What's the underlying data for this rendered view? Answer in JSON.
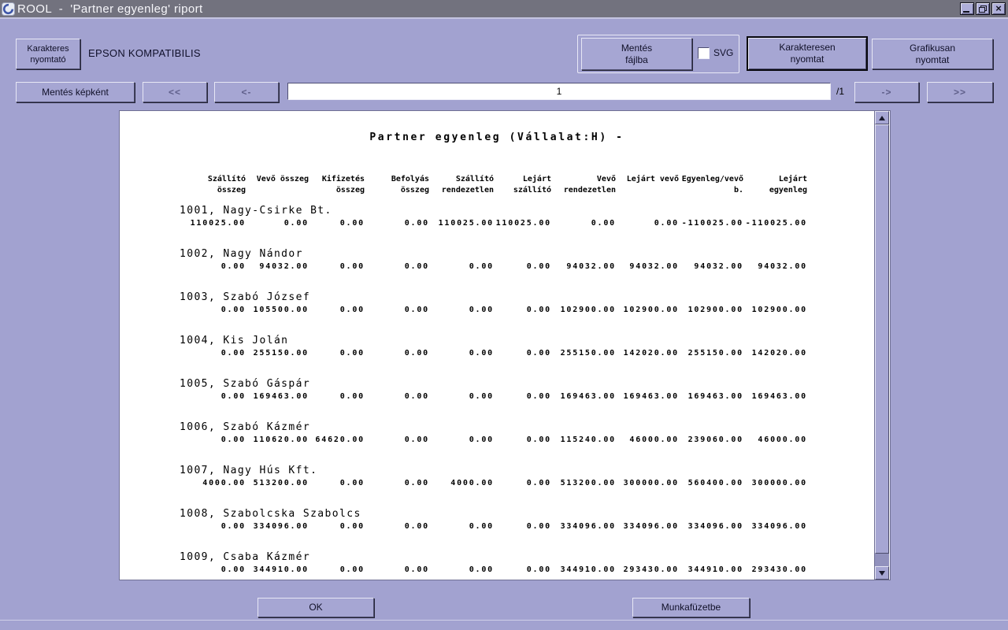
{
  "window": {
    "title": "ROOL  -  'Partner egyenleg' riport"
  },
  "toolbar": {
    "char_printer": {
      "l1": "Karakteres",
      "l2": "nyomtató"
    },
    "printer_name": "EPSON KOMPATIBILIS",
    "save_file": {
      "l1": "Mentés",
      "l2": "fájlba"
    },
    "svg_label": "SVG",
    "svg_checked": false,
    "char_print": {
      "l1": "Karakteresen",
      "l2": "nyomtat"
    },
    "graphic_print": {
      "l1": "Grafikusan",
      "l2": "nyomtat"
    },
    "save_image": "Mentés képként",
    "nav_first": "<<",
    "nav_prev": "<-",
    "nav_next": "->",
    "nav_last": ">>",
    "page_value": "1",
    "page_total": "/1"
  },
  "report": {
    "title": "Partner egyenleg (Vállalat:H) -",
    "columns": [
      [
        "Szállító",
        "összeg"
      ],
      [
        "Vevő összeg",
        ""
      ],
      [
        "Kifizetés",
        "összeg"
      ],
      [
        "Befolyás",
        "összeg"
      ],
      [
        "Szállító",
        "rendezetlen"
      ],
      [
        "Lejárt",
        "szállító"
      ],
      [
        "Vevő",
        "rendezetlen"
      ],
      [
        "Lejárt vevő",
        ""
      ],
      [
        "Egyenleg/vevő",
        "b."
      ],
      [
        "Lejárt",
        "egyenleg"
      ]
    ],
    "rows": [
      {
        "name": "1001, Nagy-Csirke Bt.",
        "values": [
          "110025.00",
          "0.00",
          "0.00",
          "0.00",
          "110025.00",
          "110025.00",
          "0.00",
          "0.00",
          "-110025.00",
          "-110025.00"
        ]
      },
      {
        "name": "1002, Nagy Nándor",
        "values": [
          "0.00",
          "94032.00",
          "0.00",
          "0.00",
          "0.00",
          "0.00",
          "94032.00",
          "94032.00",
          "94032.00",
          "94032.00"
        ]
      },
      {
        "name": "1003, Szabó József",
        "values": [
          "0.00",
          "105500.00",
          "0.00",
          "0.00",
          "0.00",
          "0.00",
          "102900.00",
          "102900.00",
          "102900.00",
          "102900.00"
        ]
      },
      {
        "name": "1004, Kis Jolán",
        "values": [
          "0.00",
          "255150.00",
          "0.00",
          "0.00",
          "0.00",
          "0.00",
          "255150.00",
          "142020.00",
          "255150.00",
          "142020.00"
        ]
      },
      {
        "name": "1005, Szabó Gáspár",
        "values": [
          "0.00",
          "169463.00",
          "0.00",
          "0.00",
          "0.00",
          "0.00",
          "169463.00",
          "169463.00",
          "169463.00",
          "169463.00"
        ]
      },
      {
        "name": "1006, Szabó Kázmér",
        "values": [
          "0.00",
          "110620.00",
          "64620.00",
          "0.00",
          "0.00",
          "0.00",
          "115240.00",
          "46000.00",
          "239060.00",
          "46000.00"
        ]
      },
      {
        "name": "1007, Nagy Hús Kft.",
        "values": [
          "4000.00",
          "513200.00",
          "0.00",
          "0.00",
          "4000.00",
          "0.00",
          "513200.00",
          "300000.00",
          "560400.00",
          "300000.00"
        ]
      },
      {
        "name": "1008, Szabolcska Szabolcs",
        "values": [
          "0.00",
          "334096.00",
          "0.00",
          "0.00",
          "0.00",
          "0.00",
          "334096.00",
          "334096.00",
          "334096.00",
          "334096.00"
        ]
      },
      {
        "name": "1009, Csaba Kázmér",
        "values": [
          "0.00",
          "344910.00",
          "0.00",
          "0.00",
          "0.00",
          "0.00",
          "344910.00",
          "293430.00",
          "344910.00",
          "293430.00"
        ]
      }
    ]
  },
  "footer": {
    "ok": "OK",
    "workbook": "Munkafüzetbe"
  },
  "colors": {
    "background": "#a2a2d0",
    "titlebar": "#72727e",
    "button_face": "#a6a6d3",
    "page": "#ffffff",
    "report_text": "#000000"
  }
}
